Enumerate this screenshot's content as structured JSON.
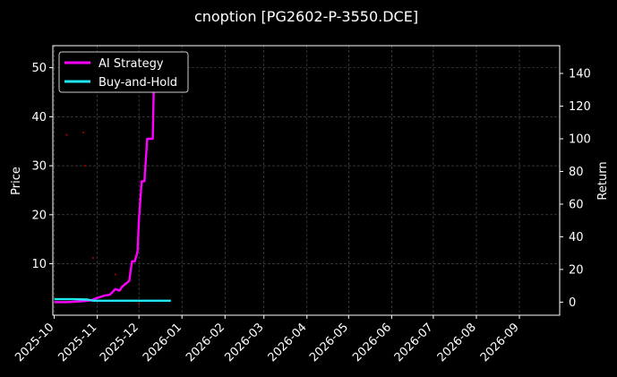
{
  "chart_data": {
    "type": "line",
    "title": "cnoption [PG2602-P-3550.DCE]",
    "ylabel": "Price",
    "y2label": "Return",
    "xlim": [
      "2025-09-30",
      "2026-09-30"
    ],
    "ylim": [
      -0.5,
      54.5
    ],
    "y2lim": [
      -8,
      157
    ],
    "x_ticks": [
      "2025-10",
      "2025-11",
      "2025-12",
      "2026-01",
      "2026-02",
      "2026-03",
      "2026-04",
      "2026-05",
      "2026-06",
      "2026-07",
      "2026-08",
      "2026-09"
    ],
    "y_ticks": [
      10,
      20,
      30,
      40,
      50
    ],
    "y2_ticks": [
      0,
      20,
      40,
      60,
      80,
      100,
      120,
      140
    ],
    "grid": true,
    "legend_position": "top-left",
    "series": [
      {
        "name": "AI Strategy",
        "axis": "right",
        "color": "#ff00ff",
        "points": [
          [
            "2025-10-01",
            0
          ],
          [
            "2025-10-10",
            0
          ],
          [
            "2025-10-20",
            0.5
          ],
          [
            "2025-10-27",
            1
          ],
          [
            "2025-11-01",
            2.5
          ],
          [
            "2025-11-06",
            4
          ],
          [
            "2025-11-10",
            4.5
          ],
          [
            "2025-11-14",
            8
          ],
          [
            "2025-11-17",
            7
          ],
          [
            "2025-11-19",
            9.5
          ],
          [
            "2025-11-24",
            13
          ],
          [
            "2025-11-26",
            25
          ],
          [
            "2025-11-28",
            25
          ],
          [
            "2025-11-30",
            31
          ],
          [
            "2025-12-01",
            50
          ],
          [
            "2025-12-03",
            74
          ],
          [
            "2025-12-05",
            74
          ],
          [
            "2025-12-07",
            100
          ],
          [
            "2025-12-11",
            100
          ],
          [
            "2025-12-12",
            145
          ]
        ]
      },
      {
        "name": "Buy-and-Hold",
        "axis": "right",
        "color": "#22e6f2",
        "points": [
          [
            "2025-10-01",
            1.8
          ],
          [
            "2025-10-15",
            1.8
          ],
          [
            "2025-10-25",
            1.6
          ],
          [
            "2025-10-29",
            0.9
          ],
          [
            "2025-11-15",
            0.9
          ],
          [
            "2025-12-08",
            0.9
          ],
          [
            "2025-12-24",
            0.9
          ]
        ]
      }
    ],
    "price_markers": {
      "color": "#8b0000",
      "points": [
        [
          "2025-10-10",
          36.3
        ],
        [
          "2025-10-22",
          36.8
        ],
        [
          "2025-10-23",
          30
        ],
        [
          "2025-10-29",
          11.2
        ],
        [
          "2025-11-14",
          7.8
        ],
        [
          "2025-11-20",
          5.5
        ],
        [
          "2025-12-01",
          1.8
        ]
      ]
    }
  }
}
